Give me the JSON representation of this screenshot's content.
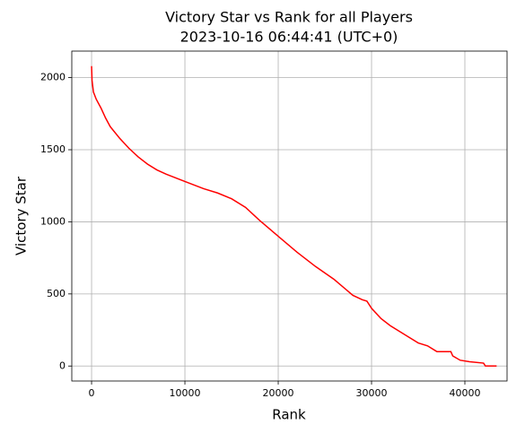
{
  "chart_data": {
    "type": "line",
    "title": "Victory Star vs Rank for all Players",
    "subtitle": "2023-10-16 06:44:41 (UTC+0)",
    "x_label": "Rank",
    "y_label": "Victory Star",
    "x": [
      0,
      50,
      200,
      500,
      1000,
      1500,
      2000,
      3000,
      4000,
      5000,
      6000,
      7000,
      8000,
      10000,
      12000,
      13500,
      15000,
      16500,
      18000,
      20000,
      22000,
      24000,
      26000,
      28000,
      29000,
      29500,
      30000,
      31000,
      32000,
      34000,
      35000,
      36000,
      37000,
      38500,
      38700,
      39500,
      40500,
      42000,
      42200,
      43400
    ],
    "series": [
      {
        "name": "Victory Star",
        "color": "#ff0000",
        "values": [
          2080,
          1980,
          1900,
          1850,
          1790,
          1720,
          1660,
          1580,
          1510,
          1450,
          1400,
          1360,
          1330,
          1280,
          1230,
          1200,
          1160,
          1100,
          1010,
          900,
          790,
          690,
          600,
          490,
          460,
          450,
          400,
          330,
          280,
          200,
          160,
          140,
          100,
          100,
          70,
          40,
          30,
          20,
          0,
          0
        ]
      }
    ],
    "xlim": [
      -2120,
      44520
    ],
    "xticks": [
      0,
      10000,
      20000,
      30000,
      40000
    ],
    "ylim": [
      -104,
      2184
    ],
    "yticks": [
      0,
      500,
      1000,
      1500,
      2000
    ],
    "grid": true
  }
}
